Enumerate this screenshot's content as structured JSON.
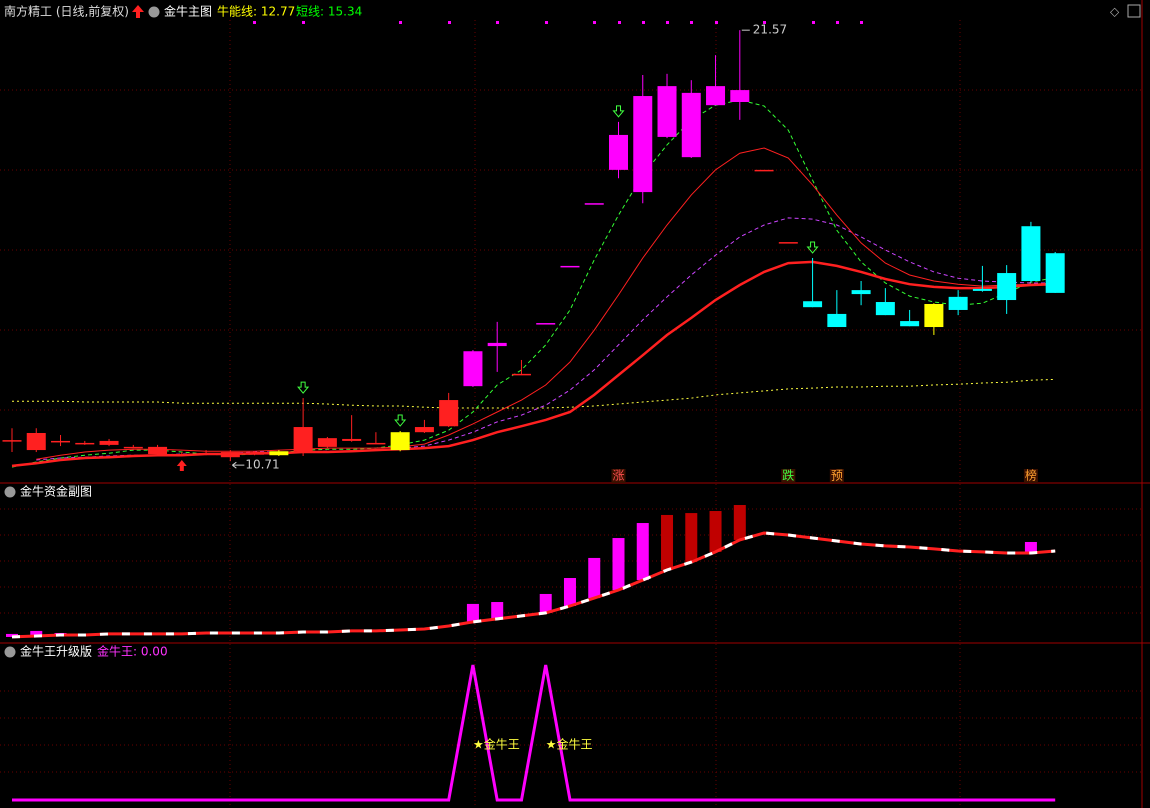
{
  "header": {
    "stock": "南方精工 (日线,前复权)"
  },
  "chart_data": [
    {
      "type": "candlestick",
      "title": "金牛主图",
      "legend_items": [
        {
          "text": "牛能线: 12.77",
          "color": "#ffff00"
        },
        {
          "text": "短线: 15.34",
          "color": "#00ff00"
        }
      ],
      "ylim": [
        10.16,
        22.33
      ],
      "open": [
        11.24,
        10.99,
        11.22,
        11.17,
        11.12,
        11.07,
        10.89,
        10.89,
        10.91,
        10.81,
        10.91,
        10.86,
        10.96,
        11.07,
        11.22,
        11.17,
        10.99,
        11.44,
        11.59,
        12.6,
        13.61,
        12.88,
        14.19,
        15.63,
        17.21,
        18.05,
        17.49,
        18.88,
        18.37,
        19.68,
        19.76,
        18.05,
        16.23,
        14.74,
        14.42,
        15.02,
        14.72,
        14.24,
        14.09,
        14.85,
        15.05,
        15.45,
        16.63,
        15.95
      ],
      "close": [
        11.24,
        11.42,
        11.22,
        11.17,
        11.22,
        11.07,
        11.07,
        10.89,
        10.91,
        10.94,
        10.91,
        10.96,
        11.57,
        11.29,
        11.27,
        11.17,
        11.44,
        11.57,
        12.25,
        13.48,
        13.69,
        12.91,
        14.19,
        15.63,
        17.21,
        18.93,
        19.91,
        20.16,
        19.99,
        20.16,
        20.06,
        18.05,
        16.23,
        14.59,
        14.09,
        14.92,
        14.39,
        14.11,
        14.67,
        14.52,
        15.0,
        14.77,
        15.25,
        14.95
      ],
      "high": [
        11.54,
        11.54,
        11.37,
        11.22,
        11.27,
        11.12,
        11.12,
        10.94,
        10.99,
        10.99,
        10.96,
        10.99,
        12.3,
        11.32,
        11.87,
        11.44,
        11.47,
        11.75,
        12.43,
        13.51,
        14.22,
        13.26,
        14.19,
        15.63,
        17.21,
        19.26,
        20.44,
        20.47,
        20.31,
        20.94,
        21.57,
        18.05,
        16.23,
        15.83,
        15.02,
        15.25,
        15.07,
        14.52,
        14.69,
        15.02,
        15.63,
        15.65,
        16.74,
        15.98
      ],
      "low": [
        10.94,
        10.94,
        11.09,
        11.12,
        11.09,
        11.04,
        10.86,
        10.84,
        10.86,
        10.71,
        10.86,
        10.84,
        10.84,
        11.04,
        11.2,
        11.14,
        10.96,
        11.42,
        11.57,
        12.58,
        12.96,
        12.88,
        14.19,
        15.63,
        17.21,
        17.84,
        17.21,
        18.85,
        18.35,
        19.68,
        19.31,
        18.05,
        16.23,
        14.59,
        14.09,
        14.64,
        14.39,
        14.11,
        13.89,
        14.39,
        14.98,
        14.42,
        15.22,
        14.95
      ],
      "colors": [
        "#ff2020",
        "#ff2020",
        "#ff2020",
        "#ff2020",
        "#ff2020",
        "#ff2020",
        "#ff2020",
        "#ff2020",
        "#ff2020",
        "#ff2020",
        "#ff2020",
        "#ffff00",
        "#ff2020",
        "#ff2020",
        "#ff2020",
        "#ff2020",
        "#ffff00",
        "#ff2020",
        "#ff2020",
        "#ff00ff",
        "#ff00ff",
        "#ff2020",
        "#ff00ff",
        "#ff00ff",
        "#ff00ff",
        "#ff00ff",
        "#ff00ff",
        "#ff00ff",
        "#ff00ff",
        "#ff00ff",
        "#ff00ff",
        "#ff2020",
        "#ff2020",
        "#00ffff",
        "#00ffff",
        "#00ffff",
        "#00ffff",
        "#00ffff",
        "#ffff00",
        "#00ffff",
        "#00ffff",
        "#00ffff",
        "#00ffff",
        "#00ffff"
      ],
      "series": [
        {
          "color": "#ffff40",
          "style": "dotted",
          "width": 1,
          "values": [
            12.22,
            12.22,
            12.22,
            12.2,
            12.2,
            12.2,
            12.2,
            12.17,
            12.17,
            12.17,
            12.17,
            12.17,
            12.17,
            12.15,
            12.12,
            12.1,
            12.1,
            12.07,
            12.05,
            12.05,
            12.05,
            12.05,
            12.05,
            12.07,
            12.1,
            12.15,
            12.2,
            12.25,
            12.3,
            12.38,
            12.43,
            12.48,
            12.53,
            12.55,
            12.58,
            12.58,
            12.6,
            12.6,
            12.63,
            12.65,
            12.68,
            12.7,
            12.75,
            12.77
          ]
        },
        {
          "color": "#33ff33",
          "style": "dashed",
          "width": 1,
          "values": [
            10.56,
            10.69,
            10.79,
            10.86,
            10.91,
            10.99,
            10.99,
            10.94,
            10.89,
            10.86,
            10.89,
            10.91,
            10.99,
            11.01,
            11.01,
            11.04,
            11.12,
            11.24,
            11.49,
            11.95,
            12.63,
            13.01,
            13.64,
            14.52,
            15.78,
            16.91,
            17.92,
            18.68,
            19.31,
            19.68,
            19.81,
            19.66,
            19.05,
            17.79,
            16.53,
            15.73,
            15.2,
            14.87,
            14.72,
            14.64,
            14.69,
            14.95,
            15.22,
            15.34
          ]
        },
        {
          "color": "#cc44ff",
          "style": "dashed",
          "width": 1,
          "values": [
            null,
            10.74,
            10.79,
            10.81,
            10.84,
            10.86,
            10.86,
            10.89,
            10.89,
            10.91,
            10.94,
            10.94,
            10.94,
            10.96,
            10.96,
            10.99,
            11.04,
            11.09,
            11.24,
            11.44,
            11.7,
            11.87,
            12.12,
            12.5,
            13.01,
            13.64,
            14.27,
            14.85,
            15.4,
            15.9,
            16.36,
            16.66,
            16.84,
            16.81,
            16.66,
            16.36,
            16.03,
            15.73,
            15.48,
            15.32,
            15.25,
            15.22,
            15.2,
            15.2
          ]
        },
        {
          "color": "#ff2020",
          "style": "solid",
          "width": 1,
          "values": [
            null,
            10.76,
            10.86,
            10.94,
            10.99,
            11.01,
            11.01,
            10.99,
            10.96,
            10.96,
            10.96,
            10.99,
            11.01,
            11.04,
            11.04,
            11.04,
            11.07,
            11.14,
            11.37,
            11.65,
            11.95,
            12.25,
            12.63,
            13.21,
            14.01,
            14.9,
            15.83,
            16.66,
            17.42,
            18.05,
            18.47,
            18.6,
            18.35,
            17.67,
            16.91,
            16.21,
            15.7,
            15.4,
            15.25,
            15.17,
            15.12,
            15.15,
            15.17,
            15.2
          ]
        },
        {
          "color": "#ff2020",
          "style": "solid",
          "width": 2.5,
          "values": [
            10.59,
            10.66,
            10.74,
            10.79,
            10.81,
            10.84,
            10.86,
            10.86,
            10.89,
            10.89,
            10.91,
            10.91,
            10.94,
            10.94,
            10.96,
            10.99,
            11.01,
            11.04,
            11.09,
            11.24,
            11.44,
            11.59,
            11.75,
            11.95,
            12.38,
            12.88,
            13.38,
            13.89,
            14.32,
            14.77,
            15.15,
            15.48,
            15.7,
            15.73,
            15.63,
            15.48,
            15.3,
            15.17,
            15.1,
            15.07,
            15.07,
            15.1,
            15.15,
            15.17
          ]
        }
      ],
      "arrows": [
        null,
        null,
        null,
        null,
        null,
        null,
        null,
        "up",
        null,
        null,
        null,
        null,
        "down",
        null,
        null,
        null,
        "down",
        null,
        null,
        null,
        null,
        null,
        null,
        null,
        null,
        "down",
        null,
        null,
        null,
        null,
        null,
        null,
        null,
        "down",
        null,
        null,
        null,
        null,
        null,
        null,
        null,
        null,
        null,
        null
      ],
      "signal_labels": [
        null,
        null,
        null,
        null,
        null,
        null,
        null,
        null,
        null,
        null,
        null,
        null,
        null,
        null,
        null,
        null,
        null,
        null,
        null,
        null,
        null,
        null,
        null,
        null,
        null,
        "涨",
        null,
        null,
        null,
        null,
        null,
        null,
        "跌",
        null,
        "预",
        null,
        null,
        null,
        null,
        null,
        null,
        null,
        "榜",
        null
      ],
      "signal_colors": [
        null,
        null,
        null,
        null,
        null,
        null,
        null,
        null,
        null,
        null,
        null,
        null,
        null,
        null,
        null,
        null,
        null,
        null,
        null,
        null,
        null,
        null,
        null,
        null,
        null,
        "#ff5050",
        null,
        null,
        null,
        null,
        null,
        null,
        "#40ff40",
        null,
        "#ffa030",
        null,
        null,
        null,
        null,
        null,
        null,
        null,
        "#ffa030",
        null
      ]
    },
    {
      "type": "bar-line",
      "title": "金牛资金副图",
      "ylim": [
        0,
        100
      ],
      "bars": [
        5.1,
        7.0,
        5.7,
        null,
        null,
        null,
        null,
        null,
        null,
        null,
        null,
        null,
        null,
        null,
        null,
        null,
        null,
        null,
        null,
        24.1,
        25.3,
        null,
        30.4,
        40.5,
        53.2,
        65.8,
        75.3,
        80.4,
        81.6,
        82.9,
        86.7,
        null,
        null,
        null,
        null,
        null,
        null,
        null,
        null,
        null,
        null,
        null,
        63.3,
        null
      ],
      "bar_colors": [
        "#ff00ff",
        "#ff00ff",
        "#ff00ff",
        null,
        null,
        null,
        null,
        null,
        null,
        null,
        null,
        null,
        null,
        null,
        null,
        null,
        null,
        null,
        null,
        "#ff00ff",
        "#ff00ff",
        null,
        "#ff00ff",
        "#ff00ff",
        "#ff00ff",
        "#ff00ff",
        "#ff00ff",
        "#c00000",
        "#c00000",
        "#c00000",
        "#c00000",
        null,
        null,
        null,
        null,
        null,
        null,
        null,
        null,
        null,
        null,
        null,
        "#ff00ff",
        null
      ],
      "line_color": "#ff2020",
      "line_dash_color": "#ffffff",
      "values": [
        3.2,
        3.8,
        4.4,
        4.4,
        5.1,
        5.1,
        5.1,
        5.1,
        5.7,
        5.7,
        5.7,
        5.7,
        6.3,
        6.3,
        7.0,
        7.0,
        7.6,
        8.2,
        10.1,
        12.7,
        14.6,
        16.5,
        18.4,
        22.8,
        27.8,
        32.9,
        39.2,
        45.6,
        50.6,
        57.0,
        64.6,
        69.0,
        67.7,
        65.8,
        63.9,
        62.0,
        60.8,
        60.1,
        58.9,
        57.6,
        57.0,
        56.3,
        56.3,
        57.6
      ]
    },
    {
      "type": "line",
      "title": "金牛王升级版",
      "legend_items": [
        {
          "text": "金牛王: 0.00",
          "color": "#ff33ff"
        }
      ],
      "ylim": [
        0,
        1
      ],
      "color": "#ff00ff",
      "values": [
        0,
        0,
        0,
        0,
        0,
        0,
        0,
        0,
        0,
        0,
        0,
        0,
        0,
        0,
        0,
        0,
        0,
        0,
        0,
        1,
        0,
        0,
        1,
        0,
        0,
        0,
        0,
        0,
        0,
        0,
        0,
        0,
        0,
        0,
        0,
        0,
        0,
        0,
        0,
        0,
        0,
        0,
        0,
        0
      ],
      "point_labels": [
        null,
        null,
        null,
        null,
        null,
        null,
        null,
        null,
        null,
        null,
        null,
        null,
        null,
        null,
        null,
        null,
        null,
        null,
        null,
        "★金牛王",
        null,
        null,
        "★金牛王",
        null,
        null,
        null,
        null,
        null,
        null,
        null,
        null,
        null,
        null,
        null,
        null,
        null,
        null,
        null,
        null,
        null,
        null,
        null,
        null,
        null
      ]
    }
  ]
}
